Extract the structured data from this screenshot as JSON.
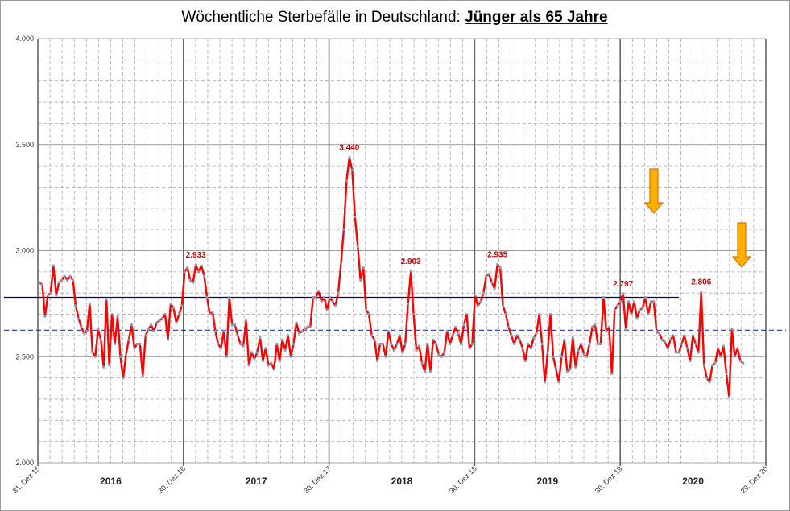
{
  "chart_data": {
    "type": "line",
    "title": "Wöchentliche Sterbefälle in Deutschland: ",
    "title_emphasis": "Jünger als 65 Jahre",
    "xlim": [
      "2015-12-31",
      "2020-12-29"
    ],
    "xticks": [
      {
        "value": "2015-12-31",
        "label": "31. Dez 15"
      },
      {
        "value": "2016-12-30",
        "label": "30. Dez 16"
      },
      {
        "value": "2017-12-30",
        "label": "30. Dez 17"
      },
      {
        "value": "2018-12-30",
        "label": "30. Dez 18"
      },
      {
        "value": "2019-12-30",
        "label": "30. Dez 19"
      },
      {
        "value": "2020-12-29",
        "label": "29. Dez 20"
      }
    ],
    "year_labels": [
      "2016",
      "2017",
      "2018",
      "2019",
      "2020"
    ],
    "ylim": [
      2000,
      4000
    ],
    "yticks": [
      {
        "value": 2000,
        "label": "2.000"
      },
      {
        "value": 2500,
        "label": "2.500"
      },
      {
        "value": 3000,
        "label": "3.000"
      },
      {
        "value": 3500,
        "label": "3.500"
      },
      {
        "value": 4000,
        "label": "4.000"
      }
    ],
    "grid": true,
    "x": [
      "2016-01-04",
      "2016-01-11",
      "2016-01-18",
      "2016-01-25",
      "2016-02-01",
      "2016-02-08",
      "2016-02-15",
      "2016-02-22",
      "2016-02-29",
      "2016-03-07",
      "2016-03-14",
      "2016-03-21",
      "2016-03-28",
      "2016-04-04",
      "2016-04-11",
      "2016-04-18",
      "2016-04-25",
      "2016-05-02",
      "2016-05-09",
      "2016-05-16",
      "2016-05-23",
      "2016-05-30",
      "2016-06-06",
      "2016-06-13",
      "2016-06-20",
      "2016-06-27",
      "2016-07-04",
      "2016-07-11",
      "2016-07-18",
      "2016-07-25",
      "2016-08-01",
      "2016-08-08",
      "2016-08-15",
      "2016-08-22",
      "2016-08-29",
      "2016-09-05",
      "2016-09-12",
      "2016-09-19",
      "2016-09-26",
      "2016-10-03",
      "2016-10-10",
      "2016-10-17",
      "2016-10-24",
      "2016-10-31",
      "2016-11-07",
      "2016-11-14",
      "2016-11-21",
      "2016-11-28",
      "2016-12-05",
      "2016-12-12",
      "2016-12-19",
      "2016-12-26",
      "2017-01-02",
      "2017-01-09",
      "2017-01-16",
      "2017-01-23",
      "2017-01-30",
      "2017-02-06",
      "2017-02-13",
      "2017-02-20",
      "2017-02-27",
      "2017-03-06",
      "2017-03-13",
      "2017-03-20",
      "2017-03-27",
      "2017-04-03",
      "2017-04-10",
      "2017-04-17",
      "2017-04-24",
      "2017-05-01",
      "2017-05-08",
      "2017-05-15",
      "2017-05-22",
      "2017-05-29",
      "2017-06-05",
      "2017-06-12",
      "2017-06-19",
      "2017-06-26",
      "2017-07-03",
      "2017-07-10",
      "2017-07-17",
      "2017-07-24",
      "2017-07-31",
      "2017-08-07",
      "2017-08-14",
      "2017-08-21",
      "2017-08-28",
      "2017-09-04",
      "2017-09-11",
      "2017-09-18",
      "2017-09-25",
      "2017-10-02",
      "2017-10-09",
      "2017-10-16",
      "2017-10-23",
      "2017-10-30",
      "2017-11-06",
      "2017-11-13",
      "2017-11-20",
      "2017-11-27",
      "2017-12-04",
      "2017-12-11",
      "2017-12-18",
      "2017-12-25",
      "2018-01-01",
      "2018-01-08",
      "2018-01-15",
      "2018-01-22",
      "2018-01-29",
      "2018-02-05",
      "2018-02-12",
      "2018-02-19",
      "2018-02-26",
      "2018-03-05",
      "2018-03-12",
      "2018-03-19",
      "2018-03-26",
      "2018-04-02",
      "2018-04-09",
      "2018-04-16",
      "2018-04-23",
      "2018-04-30",
      "2018-05-07",
      "2018-05-14",
      "2018-05-21",
      "2018-05-28",
      "2018-06-04",
      "2018-06-11",
      "2018-06-18",
      "2018-06-25",
      "2018-07-02",
      "2018-07-09",
      "2018-07-16",
      "2018-07-23",
      "2018-07-30",
      "2018-08-06",
      "2018-08-13",
      "2018-08-20",
      "2018-08-27",
      "2018-09-03",
      "2018-09-10",
      "2018-09-17",
      "2018-09-24",
      "2018-10-01",
      "2018-10-08",
      "2018-10-15",
      "2018-10-22",
      "2018-10-29",
      "2018-11-05",
      "2018-11-12",
      "2018-11-19",
      "2018-11-26",
      "2018-12-03",
      "2018-12-10",
      "2018-12-17",
      "2018-12-24",
      "2018-12-31",
      "2019-01-07",
      "2019-01-14",
      "2019-01-21",
      "2019-01-28",
      "2019-02-04",
      "2019-02-11",
      "2019-02-18",
      "2019-02-25",
      "2019-03-04",
      "2019-03-11",
      "2019-03-18",
      "2019-03-25",
      "2019-04-01",
      "2019-04-08",
      "2019-04-15",
      "2019-04-22",
      "2019-04-29",
      "2019-05-06",
      "2019-05-13",
      "2019-05-20",
      "2019-05-27",
      "2019-06-03",
      "2019-06-10",
      "2019-06-17",
      "2019-06-24",
      "2019-07-01",
      "2019-07-08",
      "2019-07-15",
      "2019-07-22",
      "2019-07-29",
      "2019-08-05",
      "2019-08-12",
      "2019-08-19",
      "2019-08-26",
      "2019-09-02",
      "2019-09-09",
      "2019-09-16",
      "2019-09-23",
      "2019-09-30",
      "2019-10-07",
      "2019-10-14",
      "2019-10-21",
      "2019-10-28",
      "2019-11-04",
      "2019-11-11",
      "2019-11-18",
      "2019-11-25",
      "2019-12-02",
      "2019-12-09",
      "2019-12-16",
      "2019-12-23",
      "2019-12-30",
      "2020-01-06",
      "2020-01-13",
      "2020-01-20",
      "2020-01-27",
      "2020-02-03",
      "2020-02-10",
      "2020-02-17",
      "2020-02-24",
      "2020-03-02",
      "2020-03-09",
      "2020-03-16",
      "2020-03-23",
      "2020-03-30",
      "2020-04-06",
      "2020-04-13",
      "2020-04-20",
      "2020-04-27",
      "2020-05-04",
      "2020-05-11",
      "2020-05-18",
      "2020-05-25",
      "2020-06-01",
      "2020-06-08",
      "2020-06-15",
      "2020-06-22",
      "2020-06-29",
      "2020-07-06",
      "2020-07-13",
      "2020-07-20",
      "2020-07-27",
      "2020-08-03",
      "2020-08-10",
      "2020-08-17",
      "2020-08-24",
      "2020-08-31",
      "2020-09-07",
      "2020-09-14",
      "2020-09-21",
      "2020-09-28",
      "2020-10-05",
      "2020-10-12",
      "2020-10-19",
      "2020-10-26",
      "2020-11-02"
    ],
    "series": [
      {
        "color": "#ff0000",
        "marker_color": "#8a9bb8",
        "values": [
          2850,
          2840,
          2690,
          2790,
          2800,
          2930,
          2790,
          2850,
          2860,
          2880,
          2860,
          2880,
          2860,
          2740,
          2680,
          2640,
          2610,
          2620,
          2750,
          2520,
          2500,
          2630,
          2580,
          2450,
          2770,
          2460,
          2700,
          2560,
          2690,
          2500,
          2400,
          2510,
          2580,
          2650,
          2540,
          2560,
          2560,
          2410,
          2600,
          2630,
          2650,
          2620,
          2660,
          2670,
          2680,
          2700,
          2580,
          2750,
          2730,
          2660,
          2700,
          2740,
          2900,
          2920,
          2860,
          2850,
          2933,
          2900,
          2930,
          2880,
          2780,
          2700,
          2710,
          2620,
          2560,
          2540,
          2620,
          2500,
          2780,
          2650,
          2650,
          2600,
          2560,
          2550,
          2670,
          2460,
          2520,
          2490,
          2520,
          2590,
          2480,
          2540,
          2460,
          2470,
          2440,
          2560,
          2480,
          2580,
          2530,
          2600,
          2500,
          2560,
          2660,
          2610,
          2620,
          2630,
          2640,
          2640,
          2780,
          2780,
          2810,
          2760,
          2780,
          2720,
          2780,
          2760,
          2740,
          2800,
          2940,
          3100,
          3330,
          3440,
          3380,
          3160,
          3020,
          2860,
          2920,
          2720,
          2700,
          2600,
          2580,
          2480,
          2560,
          2560,
          2500,
          2620,
          2560,
          2530,
          2560,
          2600,
          2520,
          2560,
          2750,
          2903,
          2700,
          2530,
          2550,
          2470,
          2430,
          2560,
          2430,
          2580,
          2560,
          2510,
          2500,
          2520,
          2620,
          2560,
          2600,
          2640,
          2610,
          2560,
          2650,
          2700,
          2540,
          2560,
          2790,
          2740,
          2760,
          2800,
          2880,
          2890,
          2850,
          2820,
          2935,
          2920,
          2740,
          2700,
          2640,
          2600,
          2560,
          2600,
          2580,
          2540,
          2480,
          2560,
          2540,
          2590,
          2610,
          2700,
          2560,
          2380,
          2520,
          2700,
          2500,
          2440,
          2380,
          2500,
          2580,
          2430,
          2440,
          2590,
          2450,
          2530,
          2560,
          2510,
          2500,
          2560,
          2640,
          2650,
          2560,
          2560,
          2780,
          2620,
          2640,
          2420,
          2720,
          2740,
          2760,
          2797,
          2630,
          2760,
          2700,
          2760,
          2680,
          2720,
          2730,
          2780,
          2700,
          2760,
          2760,
          2620,
          2610,
          2580,
          2570,
          2540,
          2580,
          2600,
          2520,
          2520,
          2560,
          2600,
          2540,
          2480,
          2600,
          2560,
          2520,
          2806,
          2460,
          2400,
          2380,
          2460,
          2470,
          2540,
          2500,
          2550,
          2420,
          2310,
          2630,
          2500,
          2540,
          2480,
          2470
        ]
      }
    ],
    "annotations": [
      {
        "x": "2017-01-30",
        "label": "2.933"
      },
      {
        "x": "2018-02-19",
        "label": "3.440"
      },
      {
        "x": "2018-07-23",
        "label": "2.903"
      },
      {
        "x": "2019-02-25",
        "label": "2.935"
      },
      {
        "x": "2020-01-06",
        "label": "2.797"
      },
      {
        "x": "2020-07-20",
        "label": "2.806"
      }
    ],
    "reference_lines": [
      {
        "value": 2780,
        "color": "#00008b",
        "style": "solid",
        "x_end": "2020-05-25"
      },
      {
        "value": 2625,
        "color": "#2233bb",
        "style": "dashed"
      }
    ]
  }
}
